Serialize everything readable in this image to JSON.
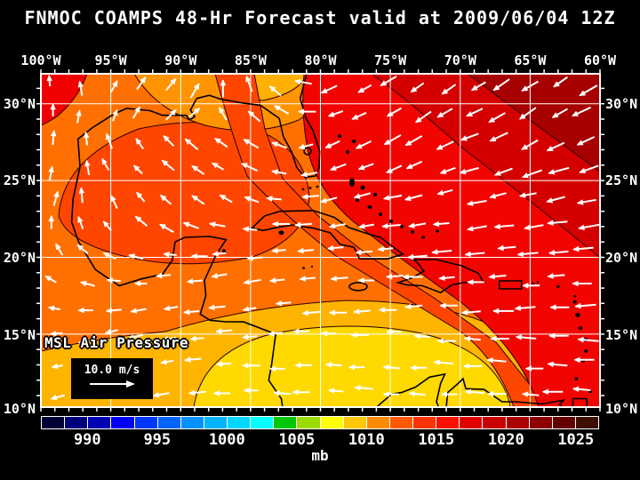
{
  "title": "FNMOC COAMPS 48-Hr Forecast valid at 2009/06/04 12Z",
  "map": {
    "field_label": "MSL Air Pressure",
    "wind_scale": {
      "speed_label": "10.0 m/s"
    },
    "lon_labels": [
      "100°W",
      "95°W",
      "90°W",
      "85°W",
      "80°W",
      "75°W",
      "70°W",
      "65°W",
      "60°W"
    ],
    "lat_labels": [
      "30°N",
      "25°N",
      "20°N",
      "15°N",
      "10°N"
    ]
  },
  "colorbar": {
    "unit": "mb",
    "tick_labels": [
      "990",
      "995",
      "1000",
      "1005",
      "1010",
      "1015",
      "1020",
      "1025"
    ],
    "colors": [
      "#000037",
      "#00007d",
      "#0000b4",
      "#0000f5",
      "#0037ff",
      "#0064ff",
      "#0091ff",
      "#00b4ff",
      "#00d7ff",
      "#00ffff",
      "#00c800",
      "#9bdc00",
      "#ffff00",
      "#ffc800",
      "#ff8c00",
      "#ff5a00",
      "#ff3200",
      "#ff0f00",
      "#e10000",
      "#c80000",
      "#ab0000",
      "#8c0000",
      "#640000",
      "#3c0f00"
    ]
  },
  "palette": {
    "base_orange": "#ff7000",
    "yellow": "#ffd900",
    "amber": "#ffb400",
    "vermilion": "#ff4600",
    "red": "#f20400",
    "crimson": "#d40000",
    "dark_red": "#a60000",
    "light_orange": "#ff9400",
    "pale_amber": "#ffb000",
    "patch_red": "#f10000",
    "grid_white": "#ffffff",
    "coast_black": "#000000",
    "arrow_white": "#ffffff",
    "contour": "#2b0000"
  },
  "wind_grid": {
    "rows": 12,
    "cols": 20,
    "angles_deg": [
      [
        95,
        100,
        60,
        55,
        50,
        60,
        90,
        110,
        140,
        170,
        205,
        210,
        210,
        215,
        215,
        210,
        215,
        210,
        215,
        210
      ],
      [
        90,
        80,
        70,
        60,
        45,
        40,
        120,
        140,
        150,
        180,
        200,
        205,
        210,
        215,
        210,
        205,
        210,
        215,
        210,
        205
      ],
      [
        85,
        95,
        110,
        125,
        135,
        140,
        145,
        150,
        160,
        195,
        205,
        205,
        210,
        210,
        205,
        200,
        205,
        210,
        205,
        205
      ],
      [
        80,
        100,
        120,
        135,
        140,
        145,
        150,
        155,
        170,
        190,
        200,
        200,
        205,
        205,
        200,
        195,
        200,
        200,
        195,
        200
      ],
      [
        75,
        95,
        115,
        130,
        140,
        145,
        150,
        160,
        175,
        185,
        195,
        195,
        190,
        195,
        195,
        190,
        195,
        190,
        195,
        190
      ],
      [
        90,
        110,
        130,
        140,
        150,
        160,
        170,
        175,
        180,
        185,
        190,
        190,
        185,
        190,
        185,
        190,
        185,
        190,
        185,
        190
      ],
      [
        120,
        140,
        155,
        165,
        175,
        180,
        185,
        185,
        185,
        185,
        185,
        185,
        185,
        185,
        185,
        185,
        185,
        185,
        185,
        185
      ],
      [
        150,
        165,
        175,
        180,
        185,
        185,
        190,
        190,
        185,
        185,
        185,
        180,
        185,
        180,
        185,
        180,
        185,
        180,
        185,
        180
      ],
      [
        170,
        180,
        185,
        190,
        190,
        185,
        185,
        190,
        185,
        185,
        180,
        185,
        180,
        185,
        180,
        185,
        180,
        185,
        180,
        185
      ],
      [
        185,
        190,
        195,
        195,
        190,
        185,
        185,
        185,
        185,
        180,
        180,
        180,
        180,
        175,
        180,
        175,
        180,
        175,
        180,
        175
      ],
      [
        190,
        195,
        200,
        195,
        190,
        185,
        185,
        180,
        180,
        180,
        175,
        180,
        175,
        180,
        175,
        180,
        175,
        180,
        175,
        180
      ],
      [
        195,
        200,
        200,
        195,
        190,
        185,
        180,
        180,
        175,
        180,
        175,
        175,
        180,
        175,
        180,
        175,
        180,
        175,
        180,
        175
      ]
    ]
  }
}
